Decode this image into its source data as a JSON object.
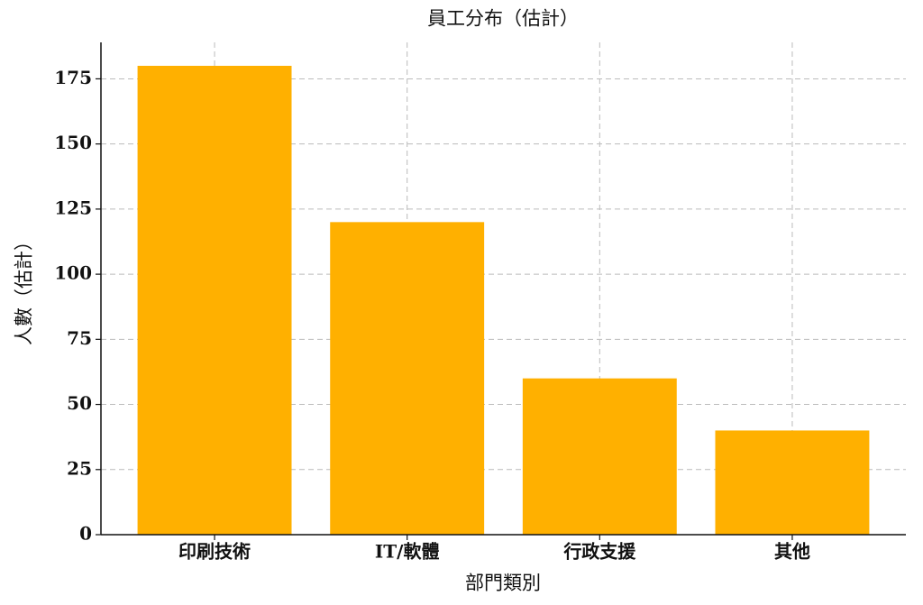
{
  "chart_data": {
    "type": "bar",
    "title": "員工分布（估計）",
    "xlabel": "部門類別",
    "ylabel": "人數（估計）",
    "categories": [
      "印刷技術",
      "IT/軟體",
      "行政支援",
      "其他"
    ],
    "values": [
      180,
      120,
      60,
      40
    ],
    "color": "#ffb000",
    "ylim": [
      0,
      189
    ],
    "yticks": [
      0,
      25,
      50,
      75,
      100,
      125,
      150,
      175
    ],
    "grid": true
  }
}
